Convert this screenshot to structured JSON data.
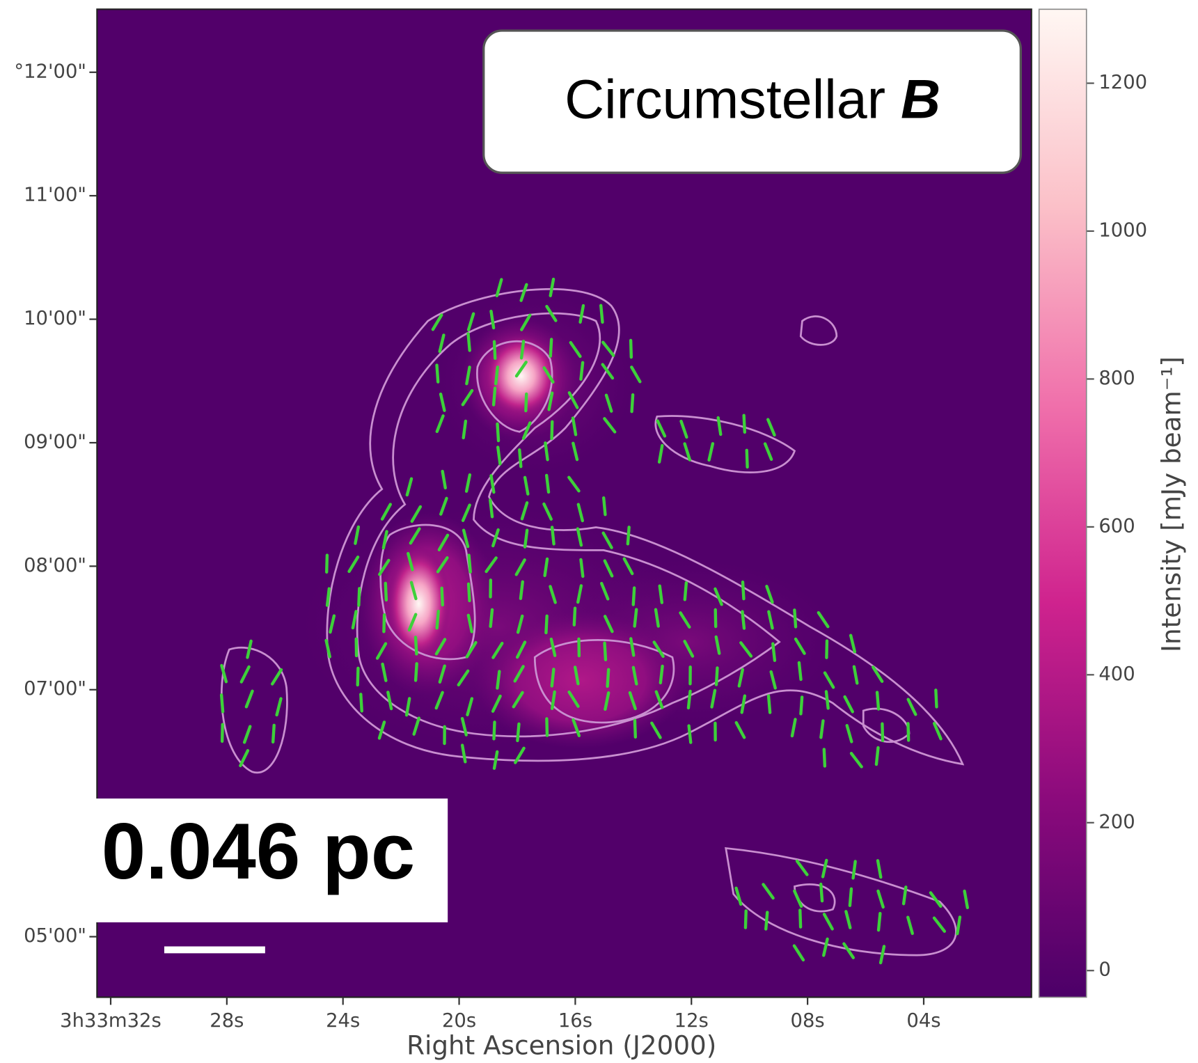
{
  "chart_data": {
    "type": "heatmap-image",
    "annotation": {
      "text": "Circumstellar",
      "italic_text": "B"
    },
    "scale_label": "0.046 pc",
    "x_label": "Right Ascension (J2000)",
    "xlim": [
      32.47,
      0.29
    ],
    "xticks": [
      {
        "value": 32,
        "label": "3h33m32s"
      },
      {
        "value": 28,
        "label": "28s"
      },
      {
        "value": 24,
        "label": "24s"
      },
      {
        "value": 20,
        "label": "20s"
      },
      {
        "value": 16,
        "label": "16s"
      },
      {
        "value": 12,
        "label": "12s"
      },
      {
        "value": 8,
        "label": "08s"
      },
      {
        "value": 4,
        "label": "04s"
      }
    ],
    "ylim": [
      4.51,
      12.51
    ],
    "yticks": [
      {
        "value": 12,
        "label": "°12'00\""
      },
      {
        "value": 11,
        "label": "11'00\""
      },
      {
        "value": 10,
        "label": "10'00\""
      },
      {
        "value": 9,
        "label": "09'00\""
      },
      {
        "value": 8,
        "label": "08'00\""
      },
      {
        "value": 7,
        "label": "07'00\""
      },
      {
        "value": 5,
        "label": "05'00\""
      }
    ],
    "colorbar_label": "Intensity [mJy beam⁻¹]",
    "clim": [
      -36,
      1300
    ],
    "cticks": [
      0,
      200,
      400,
      600,
      800,
      1000,
      1200
    ]
  }
}
